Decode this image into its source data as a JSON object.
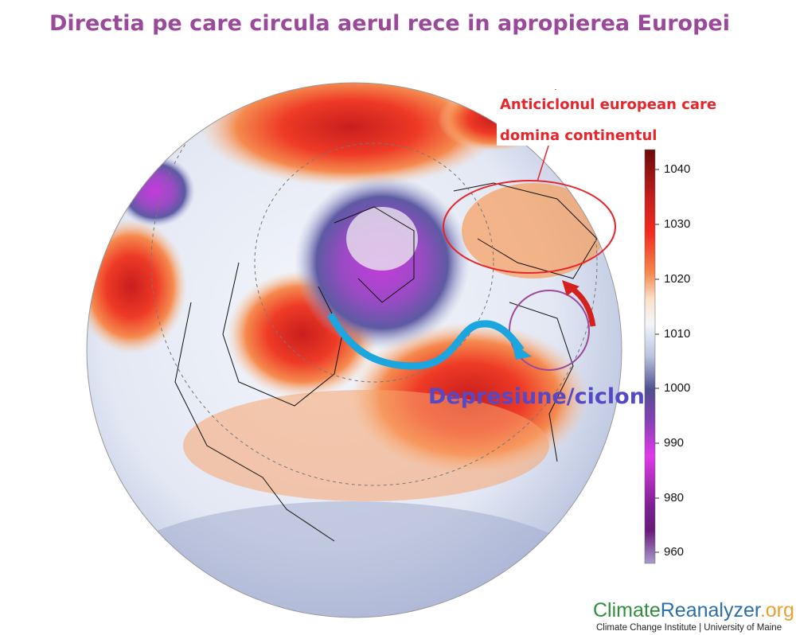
{
  "header": {
    "title": "Directia pe care circula aerul rece in apropierea Europei"
  },
  "annotations": {
    "anticyclone": [
      "Anticiclonul european care",
      "domina continentul"
    ],
    "depression": "Depresiune/ciclon"
  },
  "colorbar": {
    "ticks": [
      1040,
      1030,
      1020,
      1010,
      1000,
      990,
      980,
      960
    ]
  },
  "footer": {
    "brand": [
      "Climate",
      "Reanalyzer",
      ".org"
    ],
    "credit": "Climate Change Institute | University of Maine"
  }
}
